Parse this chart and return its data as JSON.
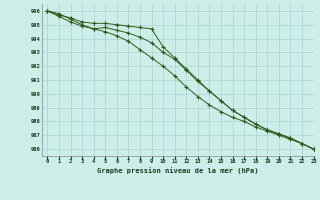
{
  "title": "Graphe pression niveau de la mer (hPa)",
  "bg_color": "#cceee8",
  "grid_color": "#aad4ce",
  "line_color": "#2d5a1b",
  "xlim": [
    -0.5,
    23
  ],
  "ylim": [
    985.5,
    996.5
  ],
  "yticks": [
    986,
    987,
    988,
    989,
    990,
    991,
    992,
    993,
    994,
    995,
    996
  ],
  "xticks": [
    0,
    1,
    2,
    3,
    4,
    5,
    6,
    7,
    8,
    9,
    10,
    11,
    12,
    13,
    14,
    15,
    16,
    17,
    18,
    19,
    20,
    21,
    22,
    23
  ],
  "series1": {
    "x": [
      0,
      1,
      2,
      3,
      4,
      5,
      6,
      7,
      8,
      9,
      10,
      11,
      12,
      13,
      14,
      15,
      16,
      17,
      18,
      19,
      20,
      21,
      22,
      23
    ],
    "y": [
      996.0,
      995.8,
      995.4,
      995.0,
      994.7,
      994.5,
      994.2,
      993.8,
      993.2,
      992.6,
      992.0,
      991.3,
      990.5,
      989.8,
      989.2,
      988.7,
      988.3,
      988.0,
      987.6,
      987.3,
      987.0,
      986.7,
      986.4,
      986.0
    ]
  },
  "series2": {
    "x": [
      0,
      1,
      2,
      3,
      4,
      5,
      6,
      7,
      8,
      9,
      10,
      11,
      12,
      13,
      14,
      15,
      16,
      17,
      18,
      19,
      20,
      21,
      22,
      23
    ],
    "y": [
      996.0,
      995.7,
      995.5,
      995.2,
      995.1,
      995.1,
      995.0,
      994.9,
      994.8,
      994.7,
      993.4,
      992.6,
      991.8,
      991.0,
      990.2,
      989.5,
      988.8,
      988.3,
      987.8,
      987.4,
      987.1,
      986.8,
      986.4,
      986.0
    ]
  },
  "series3": {
    "x": [
      0,
      1,
      2,
      3,
      4,
      5,
      6,
      7,
      8,
      9,
      10,
      11,
      12,
      13,
      14,
      15,
      16,
      17,
      18,
      19,
      20,
      21,
      22,
      23
    ],
    "y": [
      996.0,
      995.6,
      995.2,
      994.9,
      994.7,
      994.8,
      994.6,
      994.4,
      994.1,
      993.7,
      993.0,
      992.5,
      991.7,
      990.9,
      990.2,
      989.5,
      988.8,
      988.3,
      987.8,
      987.4,
      987.1,
      986.8,
      986.4,
      986.0
    ]
  }
}
